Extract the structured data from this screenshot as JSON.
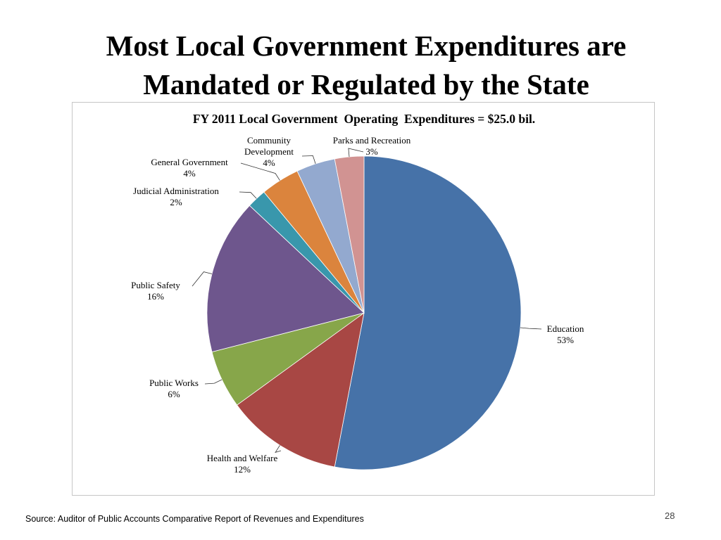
{
  "slide": {
    "title_line1": "Most Local Government Expenditures are",
    "title_line2": "Mandated or Regulated by the State",
    "source": "Source:  Auditor of Public Accounts Comparative Report of Revenues and Expenditures",
    "page_number": "28"
  },
  "chart_data": {
    "type": "pie",
    "title": "FY 2011 Local Government  Operating  Expenditures = $25.0 bil.",
    "start": "12 o'clock",
    "direction": "clockwise",
    "slices": [
      {
        "label": "Education",
        "value": 53,
        "pct_label": "53%",
        "color": "#4672A8"
      },
      {
        "label": "Health and Welfare",
        "value": 12,
        "pct_label": "12%",
        "color": "#A84744"
      },
      {
        "label": "Public Works",
        "value": 6,
        "pct_label": "6%",
        "color": "#87A64A"
      },
      {
        "label": "Public Safety",
        "value": 16,
        "pct_label": "16%",
        "color": "#6E568D"
      },
      {
        "label": "Judicial Administration",
        "value": 2,
        "pct_label": "2%",
        "color": "#3997AC"
      },
      {
        "label": "General Government",
        "value": 4,
        "pct_label": "4%",
        "color": "#DB843D"
      },
      {
        "label": "Community Development",
        "label_lines": [
          "Community",
          "Development"
        ],
        "value": 4,
        "pct_label": "4%",
        "color": "#93A9CF"
      },
      {
        "label": "Parks and Recreation",
        "value": 3,
        "pct_label": "3%",
        "color": "#D19392"
      }
    ]
  }
}
